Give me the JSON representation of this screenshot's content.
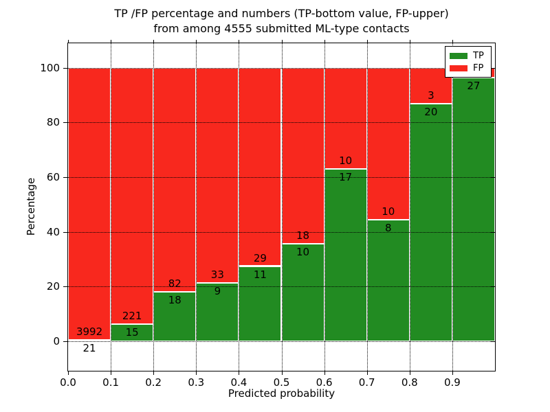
{
  "title": {
    "line1": "TP /FP percentage and numbers (TP-bottom value, FP-upper)",
    "line2": "from among 4555 submitted ML-type contacts"
  },
  "axes": {
    "x_label": "Predicted probability",
    "y_label": "Percentage",
    "x_tick_labels": [
      "0.0",
      "0.1",
      "0.2",
      "0.3",
      "0.4",
      "0.5",
      "0.6",
      "0.7",
      "0.8",
      "0.9"
    ],
    "y_tick_labels": [
      "0",
      "20",
      "40",
      "60",
      "80",
      "100"
    ],
    "y_tick_values": [
      0,
      20,
      40,
      60,
      80,
      100
    ],
    "xlim": [
      0.0,
      1.0
    ],
    "ylim": [
      -10.8,
      109.0
    ],
    "grid": "dotted black, drawn above bars"
  },
  "legend": {
    "position": "upper right",
    "items": [
      {
        "label": "TP",
        "color": "#228b22"
      },
      {
        "label": "FP",
        "color": "#f8281e"
      }
    ]
  },
  "colors": {
    "tp_green": "#228b22",
    "fp_red": "#f8281e",
    "bar_edge": "#ffffff",
    "grid": "#000000",
    "frame": "#000000",
    "background": "#ffffff",
    "text": "#000000"
  },
  "chart_data": {
    "type": "bar",
    "stacked": true,
    "normalized": "each bin scaled to 100%",
    "title": "TP /FP percentage and numbers (TP-bottom value, FP-upper) from among 4555 submitted ML-type contacts",
    "xlabel": "Predicted probability",
    "ylabel": "Percentage",
    "bin_width": 0.1,
    "categories": [
      "0.0-0.1",
      "0.1-0.2",
      "0.2-0.3",
      "0.3-0.4",
      "0.4-0.5",
      "0.5-0.6",
      "0.6-0.7",
      "0.7-0.8",
      "0.8-0.9",
      "0.9-1.0"
    ],
    "series": [
      {
        "name": "TP",
        "color": "#228b22",
        "counts": [
          21,
          15,
          18,
          9,
          11,
          10,
          17,
          8,
          20,
          27
        ]
      },
      {
        "name": "FP",
        "color": "#f8281e",
        "counts": [
          3992,
          221,
          82,
          33,
          29,
          18,
          10,
          10,
          3,
          1
        ]
      }
    ],
    "tp_percent": [
      0.52,
      6.36,
      18.0,
      21.43,
      27.5,
      35.71,
      62.96,
      44.44,
      86.96,
      96.43
    ],
    "bar_value_labels": {
      "tp": [
        "21",
        "15",
        "18",
        "9",
        "11",
        "10",
        "17",
        "8",
        "20",
        "27"
      ],
      "fp": [
        "3992",
        "221",
        "82",
        "33",
        "29",
        "18",
        "10",
        "10",
        "3",
        ""
      ]
    },
    "note_visible_in_title": "TP-bottom value, FP-upper",
    "total_contacts": "4555"
  }
}
